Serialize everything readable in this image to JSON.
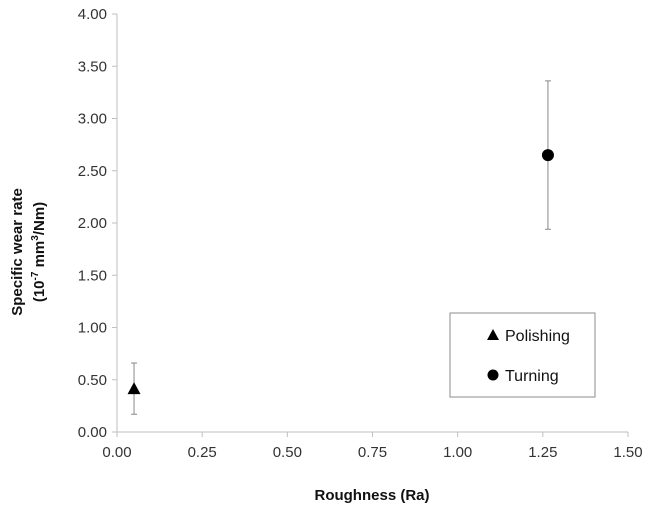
{
  "chart_data": {
    "type": "scatter",
    "title": "",
    "xlabel": "Roughness (Ra)",
    "ylabel_line1": "Specific wear rate",
    "ylabel_line2_pre": "(10",
    "ylabel_line2_sup1": "-7",
    "ylabel_line2_mid": " mm",
    "ylabel_line2_sup2": "3",
    "ylabel_line2_post": "/Nm)",
    "xlim": [
      0,
      1.5
    ],
    "ylim": [
      0,
      4
    ],
    "x_ticks": [
      "0.00",
      "0.25",
      "0.50",
      "0.75",
      "1.00",
      "1.25",
      "1.50"
    ],
    "y_ticks": [
      "0.00",
      "0.50",
      "1.00",
      "1.50",
      "2.00",
      "2.50",
      "3.00",
      "3.50",
      "4.00"
    ],
    "grid": false,
    "legend_position": "right",
    "series": [
      {
        "name": "Polishing",
        "marker": "triangle",
        "x": 0.05,
        "y": 0.41,
        "err_low": 0.17,
        "err_high": 0.66
      },
      {
        "name": "Turning",
        "marker": "circle",
        "x": 1.265,
        "y": 2.65,
        "err_low": 1.94,
        "err_high": 3.36
      }
    ],
    "marker_color": "#000000",
    "errorbar_color": "#888888",
    "axis_color": "#bfbfbf"
  }
}
